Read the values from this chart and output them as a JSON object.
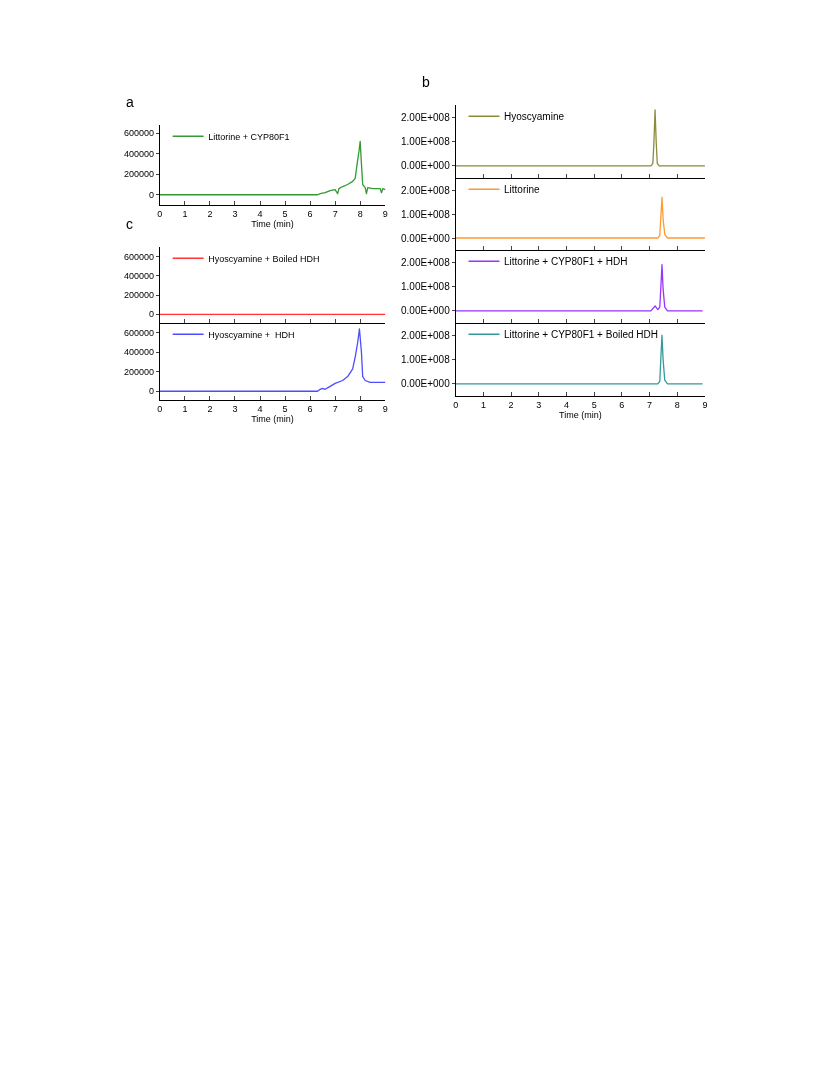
{
  "chart_data": [
    {
      "type": "line",
      "title": "a",
      "xlabel": "Time (min)",
      "legend": "top left",
      "grid": false,
      "marker": "none",
      "line_style": "solid",
      "xlim": [
        0,
        9
      ],
      "xticks": [
        0,
        1,
        2,
        3,
        4,
        5,
        6,
        7,
        8,
        9
      ],
      "ylim": [
        -100000,
        680000
      ],
      "yticks": [
        0,
        200000,
        400000,
        600000
      ],
      "x": [
        0,
        1,
        2,
        3,
        4,
        5,
        6,
        6.3,
        6.4,
        6.6,
        6.8,
        7.0,
        7.1,
        7.15,
        7.3,
        7.5,
        7.7,
        7.8,
        7.85,
        7.9,
        7.95,
        8.0,
        8.05,
        8.1,
        8.2,
        8.25,
        8.3,
        8.5,
        8.8,
        8.85,
        8.9,
        9
      ],
      "series": [
        {
          "name": "Littorine + CYP80F1",
          "color": "#339933",
          "values": [
            0,
            0,
            0,
            0,
            0,
            0,
            0,
            0,
            10000,
            20000,
            40000,
            50000,
            10000,
            60000,
            80000,
            100000,
            130000,
            160000,
            250000,
            340000,
            420000,
            520000,
            300000,
            100000,
            70000,
            10000,
            70000,
            60000,
            60000,
            20000,
            60000,
            50000
          ]
        }
      ]
    },
    {
      "type": "line",
      "title": "c",
      "legend": "top left",
      "grid": false,
      "marker": "none",
      "line_style": "solid",
      "tick_labels": "y",
      "xlim": [
        0,
        9
      ],
      "xticks": [
        0,
        1,
        2,
        3,
        4,
        5,
        6,
        7,
        8,
        9
      ],
      "ylim": [
        -90000,
        700000
      ],
      "yticks": [
        0,
        200000,
        400000,
        600000
      ],
      "x": [
        0,
        9
      ],
      "series": [
        {
          "name": "Hyoscyamine + Boiled HDH",
          "color": "#ff3333",
          "values": [
            0,
            0
          ]
        }
      ]
    },
    {
      "type": "line",
      "xlabel": "Time (min)",
      "legend": "top left",
      "grid": false,
      "marker": "none",
      "line_style": "solid",
      "xlim": [
        0,
        9
      ],
      "xticks": [
        0,
        1,
        2,
        3,
        4,
        5,
        6,
        7,
        8,
        9
      ],
      "ylim": [
        -90000,
        700000
      ],
      "yticks": [
        0,
        200000,
        400000,
        600000
      ],
      "x": [
        0,
        1,
        2,
        3,
        4,
        5,
        6,
        6.3,
        6.4,
        6.5,
        6.6,
        6.8,
        7.0,
        7.3,
        7.5,
        7.7,
        7.8,
        7.9,
        7.97,
        8.05,
        8.1,
        8.2,
        8.4,
        8.7,
        9
      ],
      "series": [
        {
          "name": "Hyoscyamine +  HDH",
          "color": "#4d4dff",
          "values": [
            0,
            0,
            0,
            0,
            0,
            0,
            0,
            0,
            20000,
            30000,
            20000,
            50000,
            80000,
            110000,
            150000,
            230000,
            350000,
            500000,
            640000,
            400000,
            150000,
            110000,
            90000,
            90000,
            90000
          ]
        }
      ]
    },
    {
      "type": "line",
      "title": "b",
      "legend": "top left",
      "grid": false,
      "marker": "none",
      "line_style": "solid",
      "tick_labels": "y",
      "xlim": [
        0,
        9
      ],
      "xticks": [
        0,
        1,
        2,
        3,
        4,
        5,
        6,
        7,
        8,
        9
      ],
      "ylim": [
        -50000000,
        250000000
      ],
      "yticks": [
        {
          "value": 0,
          "label": "0.00E+000"
        },
        {
          "value": 100000000,
          "label": "1.00E+008"
        },
        {
          "value": 200000000,
          "label": "2.00E+008"
        }
      ],
      "x": [
        0,
        7.05,
        7.12,
        7.16,
        7.2,
        7.24,
        7.28,
        7.35,
        9
      ],
      "series": [
        {
          "name": "Hyoscyamine",
          "color": "#8c8c3a",
          "values": [
            0,
            0,
            10000000,
            100000000,
            230000000,
            100000000,
            10000000,
            0,
            0
          ]
        }
      ]
    },
    {
      "type": "line",
      "legend": "top left",
      "grid": false,
      "marker": "none",
      "line_style": "solid",
      "tick_labels": "y",
      "xlim": [
        0,
        9
      ],
      "xticks": [
        0,
        1,
        2,
        3,
        4,
        5,
        6,
        7,
        8,
        9
      ],
      "ylim": [
        -50000000,
        250000000
      ],
      "yticks": [
        {
          "value": 0,
          "label": "0.00E+000"
        },
        {
          "value": 100000000,
          "label": "1.00E+008"
        },
        {
          "value": 200000000,
          "label": "2.00E+008"
        }
      ],
      "x": [
        0,
        7.3,
        7.37,
        7.41,
        7.45,
        7.49,
        7.55,
        7.65,
        9
      ],
      "series": [
        {
          "name": "Littorine",
          "color": "#ff9933",
          "values": [
            0,
            0,
            10000000,
            90000000,
            170000000,
            80000000,
            15000000,
            0,
            0
          ]
        }
      ]
    },
    {
      "type": "line",
      "legend": "top left",
      "grid": false,
      "marker": "none",
      "line_style": "solid",
      "tick_labels": "y",
      "xlim": [
        0,
        9
      ],
      "xticks": [
        0,
        1,
        2,
        3,
        4,
        5,
        6,
        7,
        8,
        9
      ],
      "ylim": [
        -50000000,
        250000000
      ],
      "yticks": [
        {
          "value": 0,
          "label": "0.00E+000"
        },
        {
          "value": 100000000,
          "label": "1.00E+008"
        },
        {
          "value": 200000000,
          "label": "2.00E+008"
        }
      ],
      "x": [
        0,
        7.05,
        7.2,
        7.3,
        7.37,
        7.41,
        7.45,
        7.49,
        7.55,
        7.65,
        8.9
      ],
      "series": [
        {
          "name": "Littorine + CYP80F1 + HDH",
          "color": "#9933ff",
          "values": [
            0,
            0,
            20000000,
            5000000,
            15000000,
            100000000,
            190000000,
            90000000,
            15000000,
            0,
            0
          ]
        }
      ]
    },
    {
      "type": "line",
      "xlabel": "Time (min)",
      "legend": "top left",
      "grid": false,
      "marker": "none",
      "line_style": "solid",
      "xlim": [
        0,
        9
      ],
      "xticks": [
        0,
        1,
        2,
        3,
        4,
        5,
        6,
        7,
        8,
        9
      ],
      "ylim": [
        -50000000,
        250000000
      ],
      "yticks": [
        {
          "value": 0,
          "label": "0.00E+000"
        },
        {
          "value": 100000000,
          "label": "1.00E+008"
        },
        {
          "value": 200000000,
          "label": "2.00E+008"
        }
      ],
      "x": [
        0,
        7.3,
        7.37,
        7.41,
        7.45,
        7.49,
        7.55,
        7.65,
        8.9
      ],
      "series": [
        {
          "name": "Littorine + CYP80F1 + Boiled HDH",
          "color": "#339999",
          "values": [
            0,
            0,
            10000000,
            110000000,
            200000000,
            100000000,
            15000000,
            0,
            0
          ]
        }
      ]
    }
  ]
}
